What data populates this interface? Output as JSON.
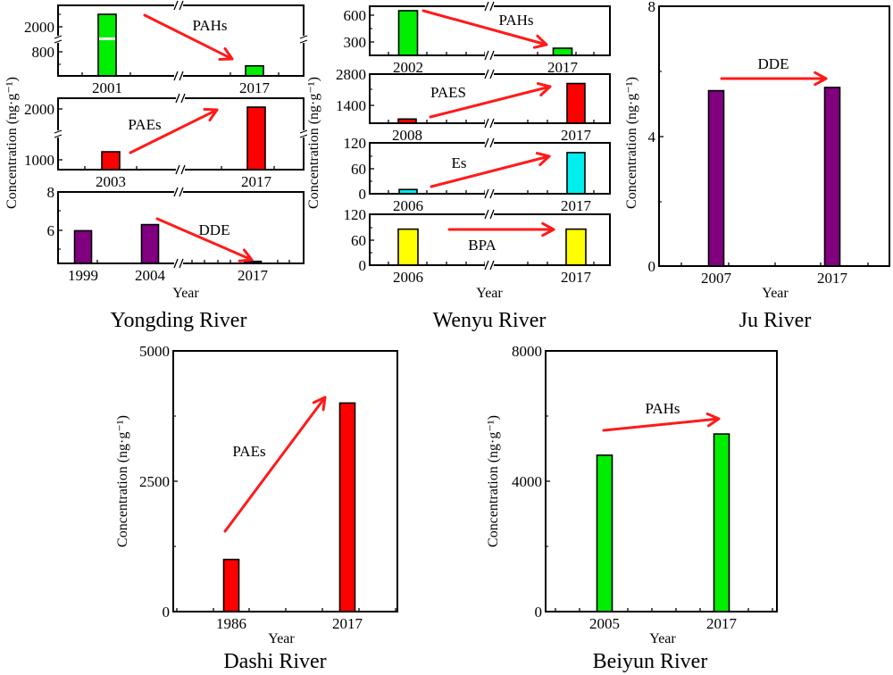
{
  "figure": {
    "colors": {
      "arrow": "#ff1a1a",
      "PAHs": "#00ee00",
      "PAEs": "#ff0000",
      "DDE": "#800080",
      "Es": "#00eeee",
      "BPA": "#ffff00",
      "frame": "#000000"
    }
  },
  "chart_data": [
    {
      "type": "bar",
      "id": "yongding",
      "title": "Yongding River",
      "xlabel": "Year",
      "ylabel": "Concentration (ng·g⁻¹)",
      "panels": [
        {
          "compound": "PAHs",
          "color_key": "PAHs",
          "categories": [
            "2001",
            "2017"
          ],
          "values": [
            2150,
            540
          ],
          "yticks": [
            "2000",
            "800"
          ],
          "y_axis_break": true,
          "x_axis_break": true,
          "trend": "decrease"
        },
        {
          "compound": "PAEs",
          "color_key": "PAEs",
          "categories": [
            "2003",
            "2017"
          ],
          "values": [
            1050,
            2050
          ],
          "yticks": [
            "2000",
            "1000"
          ],
          "ylim": [
            800,
            2200
          ],
          "y_axis_break": true,
          "x_axis_break": true,
          "trend": "increase"
        },
        {
          "compound": "DDE",
          "color_key": "DDE",
          "categories": [
            "1999",
            "2004",
            "2017"
          ],
          "values": [
            6.1,
            6.4,
            4.6
          ],
          "yticks": [
            "8",
            "6"
          ],
          "ylim": [
            4.5,
            8
          ],
          "x_axis_break": true,
          "trend": "decrease"
        }
      ]
    },
    {
      "type": "bar",
      "id": "wenyu",
      "title": "Wenyu River",
      "xlabel": "Year",
      "ylabel": "Concentration (ng·g⁻¹)",
      "panels": [
        {
          "compound": "PAHs",
          "color_key": "PAHs",
          "categories": [
            "2002",
            "2017"
          ],
          "values": [
            650,
            230
          ],
          "yticks": [
            "600",
            "300"
          ],
          "ylim": [
            150,
            700
          ],
          "x_axis_break": true,
          "trend": "decrease"
        },
        {
          "compound": "PAES",
          "color_key": "PAEs",
          "categories": [
            "2008",
            "2017"
          ],
          "values": [
            650,
            2350
          ],
          "yticks": [
            "2800",
            "1400"
          ],
          "ylim": [
            450,
            2800
          ],
          "x_axis_break": true,
          "trend": "increase"
        },
        {
          "compound": "Es",
          "color_key": "Es",
          "categories": [
            "2006",
            "2017"
          ],
          "values": [
            10,
            97
          ],
          "yticks": [
            "120",
            "60",
            "0"
          ],
          "ylim": [
            0,
            120
          ],
          "x_axis_break": true,
          "trend": "increase"
        },
        {
          "compound": "BPA",
          "color_key": "BPA",
          "categories": [
            "2006",
            "2017"
          ],
          "values": [
            85,
            85
          ],
          "yticks": [
            "120",
            "60",
            "0"
          ],
          "ylim": [
            0,
            120
          ],
          "x_axis_break": true,
          "trend": "stable"
        }
      ]
    },
    {
      "type": "bar",
      "id": "ju",
      "title": "Ju River",
      "xlabel": "Year",
      "ylabel": "Concentration (ng·g⁻¹)",
      "panels": [
        {
          "compound": "DDE",
          "color_key": "DDE",
          "categories": [
            "2007",
            "2017"
          ],
          "values": [
            5.4,
            5.5
          ],
          "yticks": [
            "8",
            "4",
            "0"
          ],
          "ylim": [
            0,
            8
          ],
          "trend": "stable"
        }
      ]
    },
    {
      "type": "bar",
      "id": "dashi",
      "title": "Dashi River",
      "xlabel": "Year",
      "ylabel": "Concentration (ng·g⁻¹)",
      "panels": [
        {
          "compound": "PAEs",
          "color_key": "PAEs",
          "categories": [
            "1986",
            "2017"
          ],
          "values": [
            1000,
            4000
          ],
          "yticks": [
            "5000",
            "2500",
            "0"
          ],
          "ylim": [
            0,
            5000
          ],
          "trend": "increase"
        }
      ]
    },
    {
      "type": "bar",
      "id": "beiyun",
      "title": "Beiyun River",
      "xlabel": "Year",
      "ylabel": "Concentration (ng·g⁻¹)",
      "panels": [
        {
          "compound": "PAHs",
          "color_key": "PAHs",
          "categories": [
            "2005",
            "2017"
          ],
          "values": [
            4800,
            5450
          ],
          "yticks": [
            "8000",
            "4000",
            "0"
          ],
          "ylim": [
            0,
            8000
          ],
          "trend": "increase"
        }
      ]
    }
  ]
}
